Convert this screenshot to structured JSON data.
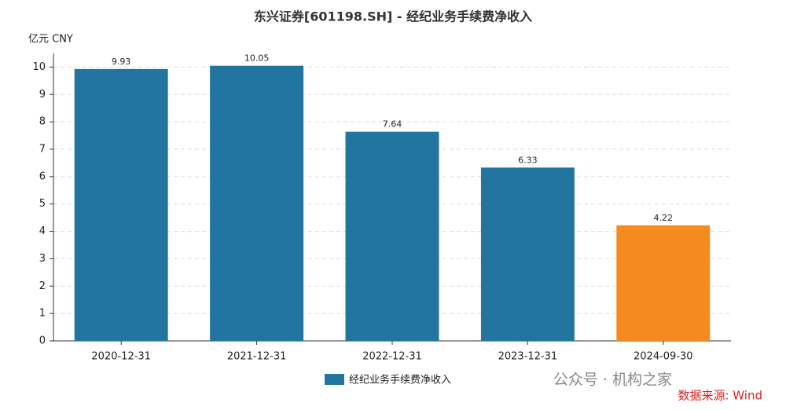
{
  "chart_data": {
    "type": "bar",
    "title": "东兴证券[601198.SH] - 经纪业务手续费净收入",
    "y_axis_label": "亿元  CNY",
    "categories": [
      "2020-12-31",
      "2021-12-31",
      "2022-12-31",
      "2023-12-31",
      "2024-09-30"
    ],
    "series": [
      {
        "name": "经纪业务手续费净收入",
        "color": "#21759f",
        "colors": [
          "#21759f",
          "#21759f",
          "#21759f",
          "#21759f",
          "#f58a1f"
        ],
        "values": [
          9.93,
          10.05,
          7.64,
          6.33,
          4.22
        ]
      }
    ],
    "ylim": [
      0,
      10.5
    ],
    "yticks": [
      0,
      1,
      2,
      3,
      4,
      5,
      6,
      7,
      8,
      9,
      10
    ],
    "grid": true,
    "legend": "bottom",
    "watermark": "公众号 · 机构之家",
    "source": "数据来源: Wind"
  }
}
